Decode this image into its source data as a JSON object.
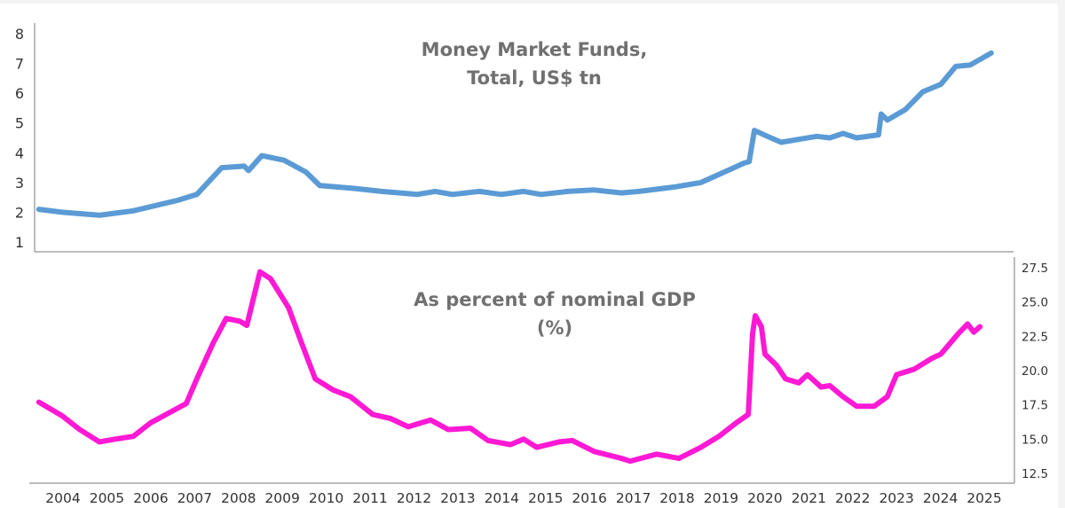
{
  "chart_data": [
    {
      "type": "line",
      "title": [
        "Money Market Funds,",
        "Total, US$ tn"
      ],
      "xlabel": "",
      "ylabel": "",
      "y_axis_side": "left",
      "ylim": [
        1,
        8
      ],
      "yticks": [
        "1",
        "2",
        "3",
        "4",
        "5",
        "6",
        "7",
        "8"
      ],
      "grid": false,
      "series": [
        {
          "name": "Money Market Funds, Total, US$ tn",
          "color": "#5b9bd5",
          "x": [
            2003.95,
            2004.48,
            2005.33,
            2006.1,
            2007.11,
            2007.55,
            2008.12,
            2008.63,
            2008.73,
            2009.03,
            2009.54,
            2010.04,
            2010.35,
            2011.16,
            2011.76,
            2012.57,
            2012.98,
            2013.38,
            2013.99,
            2014.49,
            2015.0,
            2015.4,
            2016.01,
            2016.61,
            2017.23,
            2017.63,
            2018.44,
            2019.04,
            2019.65,
            2020.02,
            2020.14,
            2020.26,
            2020.56,
            2020.87,
            2021.27,
            2021.68,
            2021.98,
            2022.28,
            2022.59,
            2023.09,
            2023.15,
            2023.29,
            2023.7,
            2024.1,
            2024.51,
            2024.85,
            2025.18,
            2025.66
          ],
          "y": [
            2.1,
            2.0,
            1.9,
            2.05,
            2.4,
            2.6,
            3.5,
            3.55,
            3.4,
            3.9,
            3.75,
            3.35,
            2.9,
            2.8,
            2.7,
            2.6,
            2.7,
            2.6,
            2.7,
            2.6,
            2.7,
            2.6,
            2.7,
            2.75,
            2.65,
            2.7,
            2.85,
            3.0,
            3.4,
            3.65,
            3.7,
            4.75,
            4.55,
            4.35,
            4.45,
            4.55,
            4.5,
            4.65,
            4.5,
            4.6,
            5.3,
            5.1,
            5.45,
            6.05,
            6.3,
            6.9,
            6.95,
            7.35
          ]
        }
      ]
    },
    {
      "type": "line",
      "title": [
        "As percent of nominal GDP",
        "(%)"
      ],
      "xlabel": "",
      "ylabel": "",
      "y_axis_side": "right",
      "ylim": [
        12.5,
        27.5
      ],
      "yticks": [
        "12.5",
        "15.0",
        "17.5",
        "20.0",
        "22.5",
        "25.0",
        "27.5"
      ],
      "xticks": [
        "2004",
        "2005",
        "2006",
        "2007",
        "2008",
        "2009",
        "2010",
        "2011",
        "2012",
        "2013",
        "2014",
        "2015",
        "2016",
        "2017",
        "2018",
        "2019",
        "2020",
        "2021",
        "2022",
        "2023",
        "2024",
        "2025"
      ],
      "grid": false,
      "series": [
        {
          "name": "As percent of nominal GDP (%)",
          "color": "#ff19d4",
          "x": [
            2003.95,
            2004.48,
            2004.88,
            2005.33,
            2005.69,
            2006.1,
            2006.5,
            2006.91,
            2007.31,
            2007.55,
            2007.92,
            2008.22,
            2008.53,
            2008.69,
            2008.99,
            2009.23,
            2009.64,
            2009.94,
            2010.25,
            2010.65,
            2011.05,
            2011.56,
            2011.97,
            2012.37,
            2012.88,
            2013.28,
            2013.79,
            2014.19,
            2014.7,
            2015.0,
            2015.3,
            2015.81,
            2016.11,
            2016.61,
            2017.23,
            2017.43,
            2018.03,
            2018.54,
            2019.04,
            2019.45,
            2019.85,
            2020.12,
            2020.22,
            2020.28,
            2020.42,
            2020.5,
            2020.76,
            2020.97,
            2021.27,
            2021.47,
            2021.78,
            2021.98,
            2022.28,
            2022.59,
            2022.99,
            2023.29,
            2023.5,
            2023.9,
            2024.31,
            2024.51,
            2024.91,
            2025.12,
            2025.26,
            2025.4
          ],
          "y": [
            17.7,
            16.7,
            15.7,
            14.8,
            15.0,
            15.2,
            16.2,
            16.9,
            17.6,
            19.4,
            22.0,
            23.8,
            23.6,
            23.3,
            27.2,
            26.7,
            24.6,
            22.0,
            19.4,
            18.6,
            18.1,
            16.8,
            16.5,
            15.9,
            16.4,
            15.7,
            15.8,
            14.9,
            14.6,
            15.0,
            14.4,
            14.8,
            14.9,
            14.1,
            13.6,
            13.4,
            13.9,
            13.6,
            14.4,
            15.2,
            16.2,
            16.8,
            22.7,
            24.0,
            23.2,
            21.2,
            20.4,
            19.4,
            19.1,
            19.7,
            18.8,
            18.9,
            18.1,
            17.4,
            17.4,
            18.1,
            19.7,
            20.1,
            20.9,
            21.2,
            22.7,
            23.4,
            22.8,
            23.2
          ]
        }
      ]
    }
  ]
}
